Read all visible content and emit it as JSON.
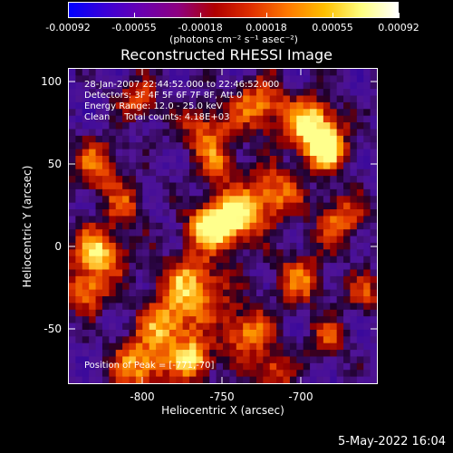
{
  "colorbar": {
    "colors": [
      "#0000ff",
      "#3b00d6",
      "#6a00b0",
      "#8e0080",
      "#b00000",
      "#e03000",
      "#ff7a00",
      "#ffc000",
      "#ffff80",
      "#ffffff"
    ],
    "tick_labels": [
      "-0.00092",
      "-0.00055",
      "-0.00018",
      "0.00018",
      "0.00055",
      "0.00092"
    ],
    "unit": "(photons cm⁻² s⁻¹ asec⁻²)"
  },
  "title": "Reconstructed RHESSI Image",
  "info": {
    "time": "28-Jan-2007 22:44:52.000 to 22:46:52.000",
    "detectors": "Detectors: 3F 4F 5F 6F 7F 8F, Att 0",
    "energy": "Energy Range: 12.0 - 25.0 keV",
    "clean": "Clean     Total counts: 4.18E+03",
    "peak": "Position of Peak = [-771,-70]"
  },
  "axes": {
    "xlabel": "Heliocentric X (arcsec)",
    "ylabel": "Heliocentric Y (arcsec)",
    "x_ticks": [
      "-800",
      "-750",
      "-700"
    ],
    "y_ticks": [
      "100",
      "50",
      "0",
      "-50"
    ]
  },
  "timestamp": "5-May-2022 16:04"
}
